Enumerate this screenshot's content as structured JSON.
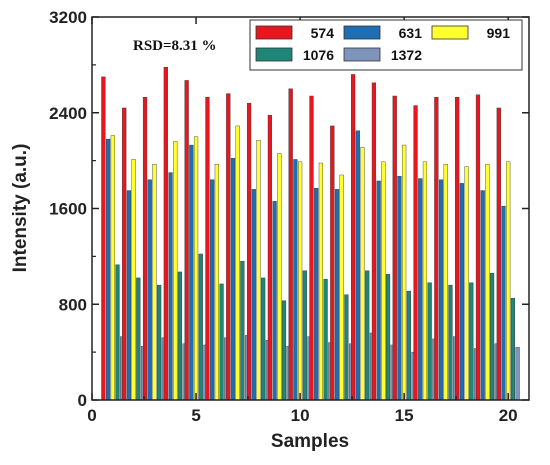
{
  "chart_data": {
    "type": "bar",
    "xlabel": "Samples",
    "ylabel": "Intensity (a.u.)",
    "annotation": "RSD=8.31 %",
    "xlim": [
      0,
      21
    ],
    "ylim": [
      0,
      3200
    ],
    "xticks": [
      0,
      5,
      10,
      15,
      20
    ],
    "yticks": [
      0,
      800,
      1600,
      2400,
      3200
    ],
    "legend_position": "top-right",
    "categories": [
      1,
      2,
      3,
      4,
      5,
      6,
      7,
      8,
      9,
      10,
      11,
      12,
      13,
      14,
      15,
      16,
      17,
      18,
      19,
      20
    ],
    "series": [
      {
        "name": "574",
        "color": "#e8161e",
        "values": [
          2700,
          2440,
          2530,
          2780,
          2670,
          2530,
          2560,
          2480,
          2380,
          2600,
          2540,
          2290,
          2720,
          2650,
          2540,
          2460,
          2530,
          2530,
          2550,
          2440
        ]
      },
      {
        "name": "631",
        "color": "#1f6db3",
        "values": [
          2180,
          1750,
          1840,
          1900,
          2130,
          1840,
          2020,
          1760,
          1660,
          2010,
          1770,
          1760,
          2250,
          1830,
          1870,
          1850,
          1840,
          1810,
          1750,
          1620
        ]
      },
      {
        "name": "991",
        "color": "#ffff2e",
        "values": [
          2210,
          2010,
          1970,
          2160,
          2200,
          1970,
          2290,
          2170,
          2060,
          1990,
          1980,
          1880,
          2110,
          1990,
          2130,
          1990,
          1970,
          1950,
          1970,
          1990
        ]
      },
      {
        "name": "1076",
        "color": "#1e8577",
        "values": [
          1130,
          1020,
          960,
          1070,
          1220,
          970,
          1160,
          1020,
          830,
          1080,
          1010,
          880,
          1080,
          1050,
          910,
          980,
          960,
          980,
          1060,
          850
        ]
      },
      {
        "name": "1372",
        "color": "#7e94ba",
        "values": [
          530,
          450,
          520,
          470,
          460,
          520,
          540,
          500,
          450,
          530,
          480,
          470,
          560,
          460,
          400,
          510,
          530,
          430,
          470,
          440
        ]
      }
    ]
  }
}
